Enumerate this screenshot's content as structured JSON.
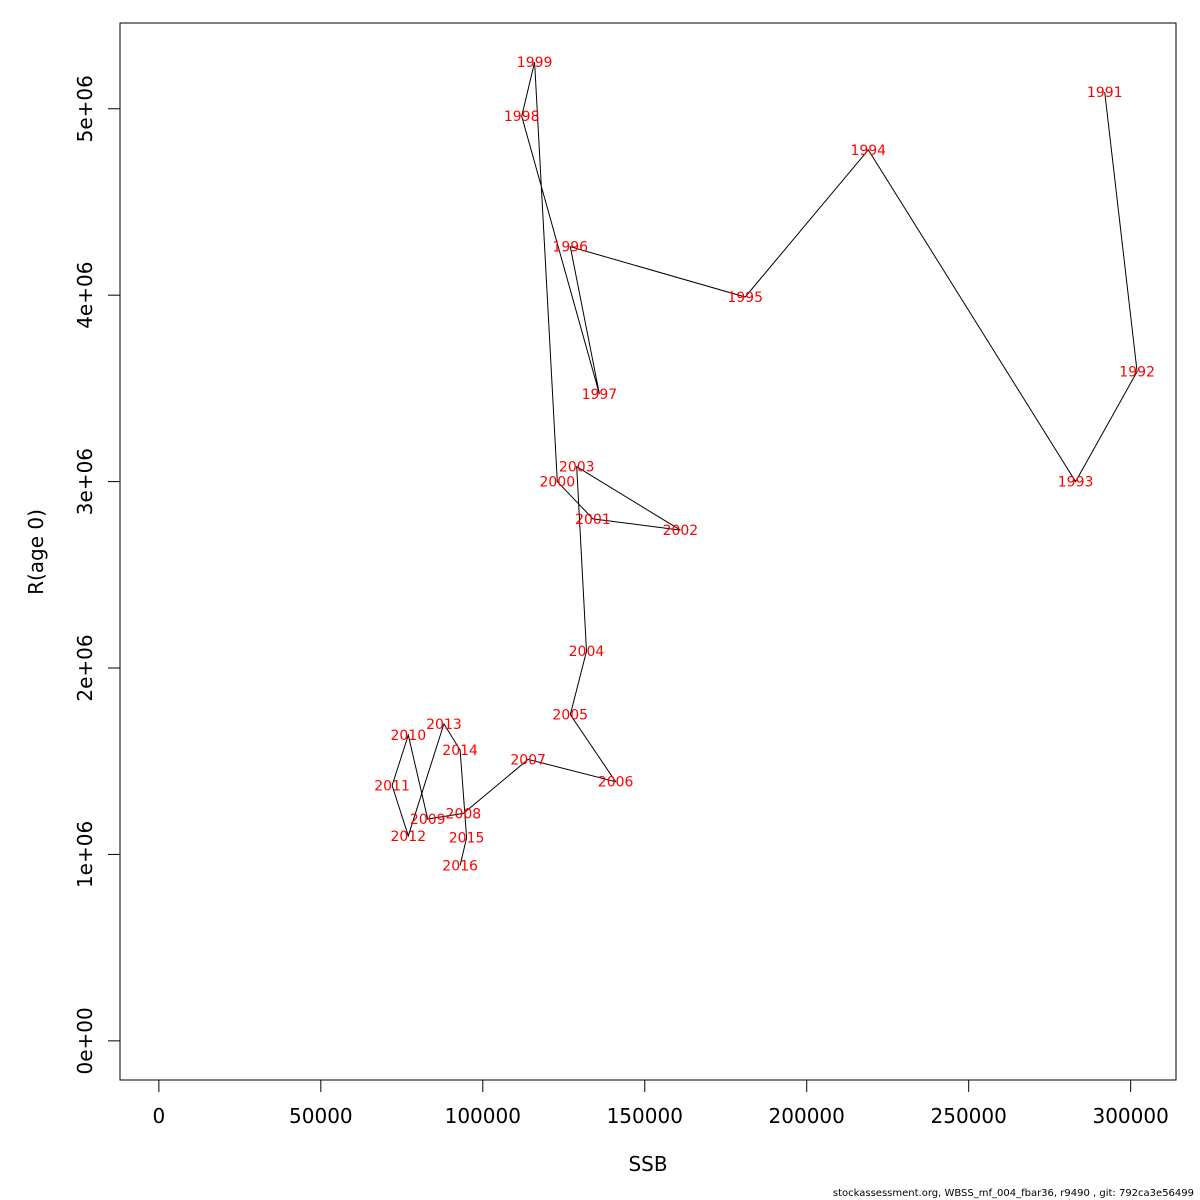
{
  "footer_text": "stockassessment.org, WBSS_mf_004_fbar36, r9490 , git: 792ca3e56499",
  "chart_data": {
    "type": "line",
    "title": "",
    "xlabel": "SSB",
    "ylabel": "R(age 0)",
    "xlim": [
      -12000,
      314000
    ],
    "ylim": [
      -210000,
      5460000
    ],
    "x_ticks": [
      0,
      50000,
      100000,
      150000,
      200000,
      250000,
      300000
    ],
    "x_tick_labels": [
      "0",
      "50000",
      "100000",
      "150000",
      "200000",
      "250000",
      "300000"
    ],
    "y_ticks": [
      0,
      1000000,
      2000000,
      3000000,
      4000000,
      5000000
    ],
    "y_tick_labels": [
      "0e+00",
      "1e+06",
      "2e+06",
      "3e+06",
      "4e+06",
      "5e+06"
    ],
    "grid": false,
    "line_color": "#000000",
    "label_color": "#ff0000",
    "points": [
      {
        "year": "1991",
        "ssb": 292000,
        "r": 5090000
      },
      {
        "year": "1992",
        "ssb": 302000,
        "r": 3590000
      },
      {
        "year": "1993",
        "ssb": 283000,
        "r": 3000000
      },
      {
        "year": "1994",
        "ssb": 219000,
        "r": 4780000
      },
      {
        "year": "1995",
        "ssb": 181000,
        "r": 3990000
      },
      {
        "year": "1996",
        "ssb": 127000,
        "r": 4260000
      },
      {
        "year": "1997",
        "ssb": 136000,
        "r": 3470000
      },
      {
        "year": "1998",
        "ssb": 112000,
        "r": 4960000
      },
      {
        "year": "1999",
        "ssb": 116000,
        "r": 5250000
      },
      {
        "year": "2000",
        "ssb": 123000,
        "r": 3000000
      },
      {
        "year": "2001",
        "ssb": 134000,
        "r": 2800000
      },
      {
        "year": "2002",
        "ssb": 161000,
        "r": 2740000
      },
      {
        "year": "2003",
        "ssb": 129000,
        "r": 3080000
      },
      {
        "year": "2004",
        "ssb": 132000,
        "r": 2090000
      },
      {
        "year": "2005",
        "ssb": 127000,
        "r": 1750000
      },
      {
        "year": "2006",
        "ssb": 141000,
        "r": 1390000
      },
      {
        "year": "2007",
        "ssb": 114000,
        "r": 1510000
      },
      {
        "year": "2008",
        "ssb": 94000,
        "r": 1220000
      },
      {
        "year": "2009",
        "ssb": 83000,
        "r": 1190000
      },
      {
        "year": "2010",
        "ssb": 77000,
        "r": 1640000
      },
      {
        "year": "2011",
        "ssb": 72000,
        "r": 1370000
      },
      {
        "year": "2012",
        "ssb": 77000,
        "r": 1100000
      },
      {
        "year": "2013",
        "ssb": 88000,
        "r": 1700000
      },
      {
        "year": "2014",
        "ssb": 93000,
        "r": 1560000
      },
      {
        "year": "2015",
        "ssb": 95000,
        "r": 1090000
      },
      {
        "year": "2016",
        "ssb": 93000,
        "r": 940000
      }
    ]
  }
}
